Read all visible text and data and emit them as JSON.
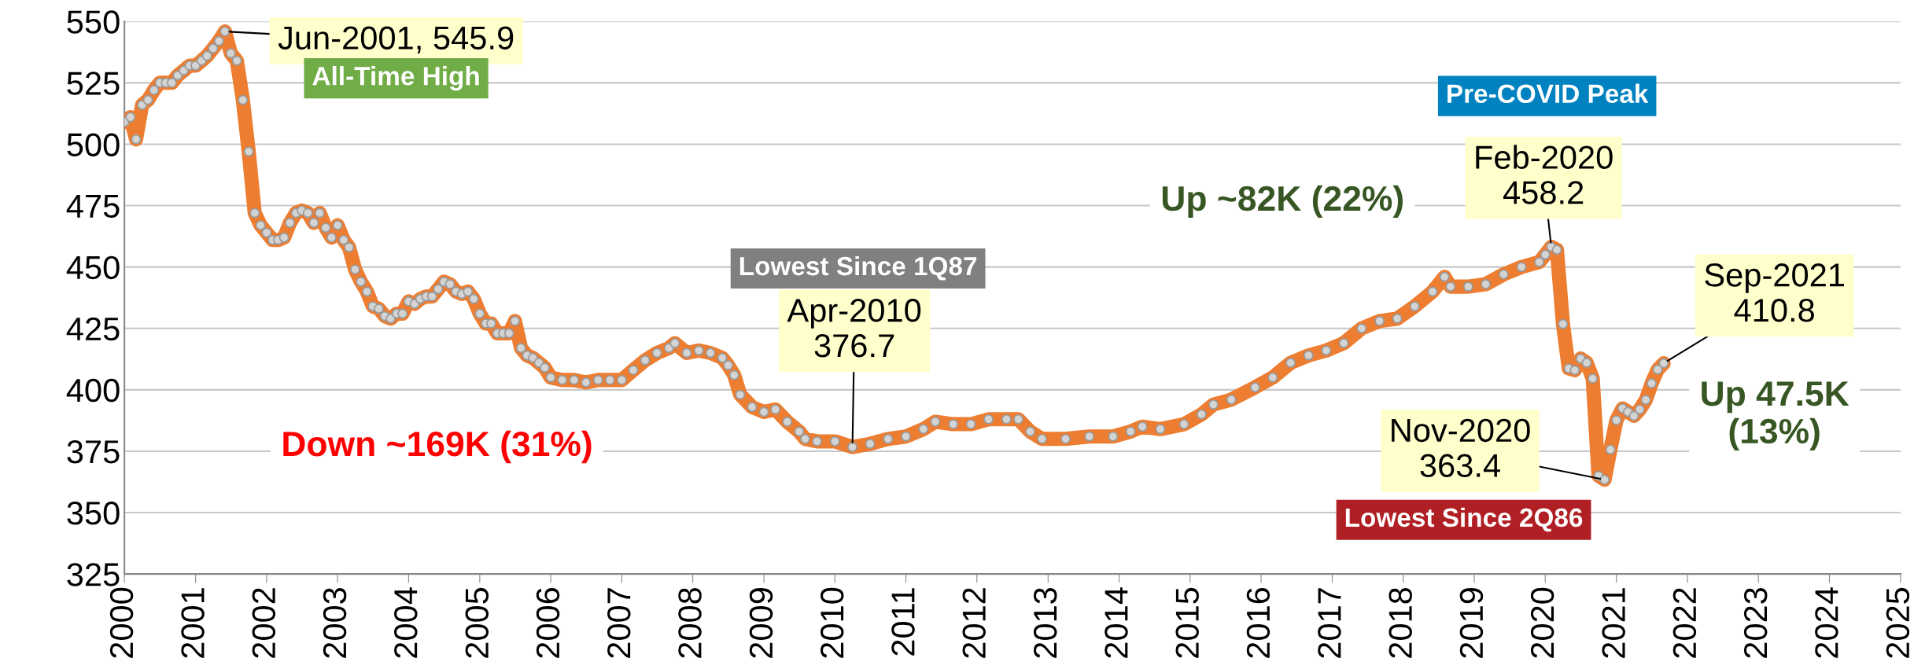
{
  "chart_data": {
    "type": "line",
    "x": [
      "2000-01",
      "2000-02",
      "2000-03",
      "2000-04",
      "2000-05",
      "2000-06",
      "2000-07",
      "2000-08",
      "2000-09",
      "2000-10",
      "2000-11",
      "2000-12",
      "2001-01",
      "2001-02",
      "2001-03",
      "2001-04",
      "2001-05",
      "2001-06",
      "2001-07",
      "2001-08",
      "2001-09",
      "2001-10",
      "2001-11",
      "2001-12",
      "2002-01",
      "2002-02",
      "2002-03",
      "2002-04",
      "2002-05",
      "2002-06",
      "2002-07",
      "2002-08",
      "2002-09",
      "2002-10",
      "2002-11",
      "2002-12",
      "2003-01",
      "2003-02",
      "2003-03",
      "2003-04",
      "2003-05",
      "2003-06",
      "2003-07",
      "2003-08",
      "2003-09",
      "2003-10",
      "2003-11",
      "2003-12",
      "2004-01",
      "2004-02",
      "2004-03",
      "2004-04",
      "2004-05",
      "2004-06",
      "2004-07",
      "2004-08",
      "2004-09",
      "2004-10",
      "2004-11",
      "2004-12",
      "2005-01",
      "2005-02",
      "2005-03",
      "2005-04",
      "2005-05",
      "2005-06",
      "2005-07",
      "2005-08",
      "2005-09",
      "2005-10",
      "2005-11",
      "2005-12",
      "2006-01",
      "2006-03",
      "2006-05",
      "2006-07",
      "2006-09",
      "2006-11",
      "2007-01",
      "2007-03",
      "2007-05",
      "2007-07",
      "2007-09",
      "2007-10",
      "2007-12",
      "2008-02",
      "2008-04",
      "2008-06",
      "2008-07",
      "2008-08",
      "2008-09",
      "2008-11",
      "2009-01",
      "2009-03",
      "2009-05",
      "2009-07",
      "2009-08",
      "2009-10",
      "2010-01",
      "2010-04",
      "2010-07",
      "2010-10",
      "2011-01",
      "2011-04",
      "2011-06",
      "2011-09",
      "2011-12",
      "2012-03",
      "2012-06",
      "2012-08",
      "2012-10",
      "2012-12",
      "2013-04",
      "2013-08",
      "2013-12",
      "2014-03",
      "2014-05",
      "2014-08",
      "2014-12",
      "2015-03",
      "2015-05",
      "2015-08",
      "2015-12",
      "2016-03",
      "2016-06",
      "2016-09",
      "2016-12",
      "2017-03",
      "2017-06",
      "2017-09",
      "2017-12",
      "2018-03",
      "2018-06",
      "2018-08",
      "2018-09",
      "2018-12",
      "2019-03",
      "2019-06",
      "2019-09",
      "2019-12",
      "2020-01",
      "2020-02",
      "2020-03",
      "2020-04",
      "2020-05",
      "2020-06",
      "2020-07",
      "2020-08",
      "2020-09",
      "2020-10",
      "2020-11",
      "2020-12",
      "2021-01",
      "2021-02",
      "2021-03",
      "2021-04",
      "2021-05",
      "2021-06",
      "2021-07",
      "2021-08",
      "2021-09"
    ],
    "series": [
      {
        "color": "#ed7d31",
        "values": [
          509,
          511,
          502,
          516,
          518,
          522,
          525,
          525,
          525,
          528,
          530,
          532,
          532,
          534,
          536,
          539,
          542,
          545.9,
          537,
          534,
          518,
          497,
          472,
          467,
          464,
          461,
          461,
          462,
          468,
          472,
          473,
          472,
          468,
          472,
          466,
          462,
          467,
          461,
          458,
          449,
          444,
          440,
          434,
          433,
          430,
          429,
          431,
          431,
          436,
          435,
          437,
          438,
          438,
          441,
          444,
          443,
          440,
          439,
          440,
          437,
          431,
          427,
          427,
          423,
          423,
          423,
          428,
          417,
          414,
          413,
          411,
          409,
          405,
          404,
          404,
          403,
          404,
          404,
          404,
          408,
          412,
          415,
          417,
          419,
          415,
          416,
          415,
          413,
          410,
          406,
          398,
          393,
          391,
          392,
          387,
          383,
          380,
          379,
          379,
          376.7,
          378,
          380,
          381,
          384,
          387,
          386,
          386,
          388,
          388,
          388,
          383,
          380,
          380,
          381,
          381,
          383,
          385,
          384,
          386,
          390,
          394,
          396,
          401,
          405,
          411,
          414,
          416,
          419,
          425,
          428,
          429,
          434,
          440,
          446,
          442,
          442,
          443,
          447,
          450,
          452,
          455,
          458.2,
          457,
          426.8,
          408.7,
          408,
          412.7,
          411,
          404.6,
          365,
          363.4,
          375.7,
          387.6,
          392.4,
          391,
          389.4,
          392,
          395.9,
          402.6,
          408.2,
          410.8
        ]
      }
    ],
    "marker": "circle",
    "grid": "y",
    "xlim": [
      "2000",
      "2025"
    ],
    "xticks": [
      "2000",
      "2001",
      "2002",
      "2003",
      "2004",
      "2005",
      "2006",
      "2007",
      "2008",
      "2009",
      "2010",
      "2011",
      "2012",
      "2013",
      "2014",
      "2015",
      "2016",
      "2017",
      "2018",
      "2019",
      "2020",
      "2021",
      "2022",
      "2023",
      "2024",
      "2025"
    ],
    "ylim": [
      325,
      550
    ],
    "yticks": [
      325,
      350,
      375,
      400,
      425,
      450,
      475,
      500,
      525,
      550
    ],
    "annotations": [
      {
        "text": "Jun-2001, 545.9",
        "x": "2001-06",
        "y": 545.9
      },
      "All-Time High",
      "Down ~169K (31%)",
      "Lowest Since 1Q87",
      {
        "text": "Apr-2010\n376.7",
        "x": "2010-04",
        "y": 376.7
      },
      "Up ~82K (22%)",
      "Pre-COVID Peak",
      {
        "text": "Feb-2020\n458.2",
        "x": "2020-02",
        "y": 458.2
      },
      {
        "text": "Sep-2021\n410.8",
        "x": "2021-09",
        "y": 410.8
      },
      "Up 47.5K\n(13%)",
      {
        "text": "Nov-2020\n363.4",
        "x": "2020-11",
        "y": 363.4
      },
      "Lowest Since 2Q86"
    ]
  }
}
